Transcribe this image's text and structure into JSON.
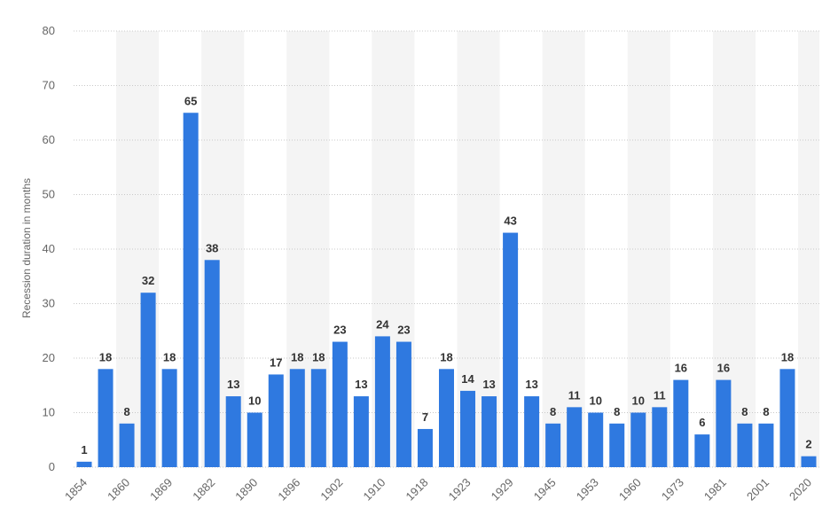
{
  "chart_data": {
    "type": "bar",
    "ylabel": "Recession duration in months",
    "ylim": [
      0,
      80
    ],
    "yticks": [
      0,
      10,
      20,
      30,
      40,
      50,
      60,
      70,
      80
    ],
    "grid": "horizontal dotted",
    "bar_color": "#2f79e0",
    "band_color": "#f4f4f4",
    "grid_color": "#c8c8c8",
    "categories": [
      "1854",
      "",
      "1860",
      "",
      "1869",
      "",
      "1882",
      "",
      "1890",
      "",
      "1896",
      "",
      "1902",
      "",
      "1910",
      "",
      "1918",
      "",
      "1923",
      "",
      "1929",
      "",
      "1945",
      "",
      "1953",
      "",
      "1960",
      "",
      "1973",
      "",
      "1981",
      "",
      "2001",
      "",
      "2020"
    ],
    "values": [
      1,
      18,
      8,
      32,
      18,
      65,
      38,
      13,
      10,
      17,
      18,
      18,
      23,
      13,
      24,
      23,
      7,
      18,
      14,
      13,
      43,
      13,
      8,
      11,
      10,
      8,
      10,
      11,
      16,
      6,
      16,
      8,
      8,
      18,
      2
    ]
  }
}
